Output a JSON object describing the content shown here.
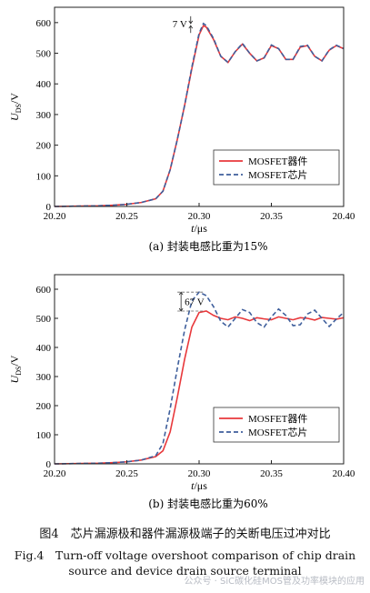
{
  "figure": {
    "caption_cn": "图4　芯片漏源极和器件漏源极端子的关断电压过冲对比",
    "caption_en_line1": "Fig.4　Turn-off voltage overshoot comparison of chip drain",
    "caption_en_line2": "source and device drain source terminal",
    "watermark": "公众号 · SiC碳化硅MOS管及功率模块的应用"
  },
  "chart_data": [
    {
      "type": "line",
      "subtitle": "(a) 封装电感比重为15%",
      "xlabel_var": "t",
      "xlabel_unit": "/μs",
      "ylabel_var": "U",
      "ylabel_sub": "DS",
      "ylabel_unit": "/V",
      "xlim": [
        20.2,
        20.4
      ],
      "ylim": [
        0,
        650
      ],
      "xticks": [
        "20.20",
        "20.25",
        "20.30",
        "20.35",
        "20.40"
      ],
      "yticks": [
        "0",
        "100",
        "200",
        "300",
        "400",
        "500",
        "600"
      ],
      "legend_position": "bottom-right",
      "annotation": "7 V",
      "series": [
        {
          "name": "MOSFET器件",
          "color": "#e8383b",
          "style": "solid",
          "x": [
            20.2,
            20.23,
            20.24,
            20.25,
            20.26,
            20.27,
            20.275,
            20.28,
            20.285,
            20.29,
            20.295,
            20.3,
            20.303,
            20.305,
            20.31,
            20.315,
            20.32,
            20.325,
            20.33,
            20.335,
            20.34,
            20.345,
            20.35,
            20.355,
            20.36,
            20.365,
            20.37,
            20.375,
            20.38,
            20.385,
            20.39,
            20.395,
            20.4
          ],
          "y": [
            0,
            2,
            4,
            7,
            13,
            25,
            50,
            120,
            220,
            330,
            450,
            560,
            590,
            585,
            545,
            490,
            470,
            505,
            530,
            500,
            475,
            485,
            525,
            515,
            480,
            480,
            520,
            525,
            490,
            475,
            510,
            525,
            515
          ]
        },
        {
          "name": "MOSFET芯片",
          "color": "#3f5f9c",
          "style": "dashed",
          "x": [
            20.2,
            20.23,
            20.24,
            20.25,
            20.26,
            20.27,
            20.275,
            20.28,
            20.285,
            20.29,
            20.295,
            20.3,
            20.303,
            20.305,
            20.31,
            20.315,
            20.32,
            20.325,
            20.33,
            20.335,
            20.34,
            20.345,
            20.35,
            20.355,
            20.36,
            20.365,
            20.37,
            20.375,
            20.38,
            20.385,
            20.39,
            20.395,
            20.4
          ],
          "y": [
            0,
            2,
            4,
            7,
            13,
            25,
            50,
            120,
            220,
            330,
            455,
            565,
            597,
            590,
            548,
            490,
            470,
            505,
            532,
            500,
            475,
            485,
            527,
            515,
            480,
            480,
            522,
            526,
            490,
            475,
            511,
            526,
            515
          ]
        }
      ]
    },
    {
      "type": "line",
      "subtitle": "(b) 封装电感比重为60%",
      "xlabel_var": "t",
      "xlabel_unit": "/μs",
      "ylabel_var": "U",
      "ylabel_sub": "DS",
      "ylabel_unit": "/V",
      "xlim": [
        20.2,
        20.4
      ],
      "ylim": [
        0,
        650
      ],
      "xticks": [
        "20.20",
        "20.25",
        "20.30",
        "20.35",
        "20.40"
      ],
      "yticks": [
        "0",
        "100",
        "200",
        "300",
        "400",
        "500",
        "600"
      ],
      "legend_position": "bottom-right",
      "annotation": "67 V",
      "series": [
        {
          "name": "MOSFET器件",
          "color": "#e8383b",
          "style": "solid",
          "x": [
            20.2,
            20.23,
            20.24,
            20.25,
            20.26,
            20.27,
            20.275,
            20.28,
            20.285,
            20.29,
            20.295,
            20.3,
            20.305,
            20.31,
            20.315,
            20.32,
            20.325,
            20.33,
            20.335,
            20.34,
            20.345,
            20.35,
            20.355,
            20.36,
            20.365,
            20.37,
            20.375,
            20.38,
            20.385,
            20.39,
            20.395,
            20.4
          ],
          "y": [
            0,
            2,
            4,
            7,
            13,
            25,
            45,
            110,
            230,
            360,
            470,
            520,
            525,
            510,
            500,
            495,
            505,
            500,
            492,
            502,
            498,
            495,
            505,
            500,
            495,
            502,
            500,
            494,
            503,
            500,
            497,
            502
          ]
        },
        {
          "name": "MOSFET芯片",
          "color": "#3f5f9c",
          "style": "dashed",
          "x": [
            20.2,
            20.23,
            20.24,
            20.25,
            20.26,
            20.27,
            20.275,
            20.28,
            20.285,
            20.29,
            20.295,
            20.3,
            20.305,
            20.31,
            20.315,
            20.32,
            20.325,
            20.33,
            20.335,
            20.34,
            20.345,
            20.35,
            20.355,
            20.36,
            20.365,
            20.37,
            20.375,
            20.38,
            20.385,
            20.39,
            20.395,
            20.4
          ],
          "y": [
            0,
            2,
            4,
            7,
            13,
            28,
            70,
            190,
            330,
            460,
            560,
            590,
            578,
            540,
            490,
            470,
            500,
            530,
            520,
            485,
            470,
            505,
            532,
            510,
            475,
            478,
            515,
            528,
            500,
            472,
            498,
            520
          ]
        }
      ]
    }
  ]
}
